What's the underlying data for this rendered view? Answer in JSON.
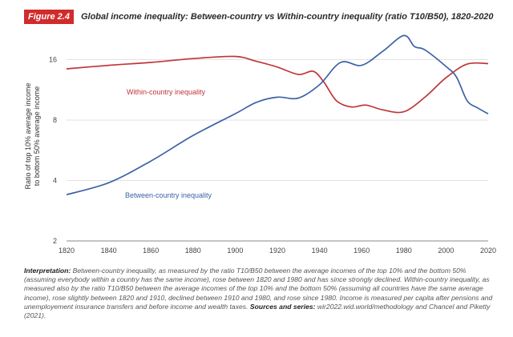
{
  "figure": {
    "label": "Figure 2.4",
    "title": "Global income inequality: Between-country vs Within-country inequality (ratio T10/B50), 1820-2020"
  },
  "chart_data": {
    "type": "line",
    "scale": "log",
    "ylabel": "Ratio of top 10% average income to bottom 50% average income",
    "xlim": [
      1820,
      2020
    ],
    "ylim": [
      2,
      23
    ],
    "x_ticks": [
      1820,
      1840,
      1860,
      1880,
      1900,
      1920,
      1940,
      1960,
      1980,
      2000,
      2020
    ],
    "y_ticks": [
      2,
      4,
      8,
      16
    ],
    "grid": "horizontal",
    "series": [
      {
        "name": "Within-country inequality",
        "color": "#c0353a",
        "points": [
          [
            1820,
            14.4
          ],
          [
            1840,
            15.0
          ],
          [
            1860,
            15.5
          ],
          [
            1880,
            16.2
          ],
          [
            1900,
            16.6
          ],
          [
            1910,
            15.7
          ],
          [
            1920,
            14.7
          ],
          [
            1930,
            13.5
          ],
          [
            1937,
            14.0
          ],
          [
            1942,
            12.4
          ],
          [
            1948,
            10.0
          ],
          [
            1955,
            9.3
          ],
          [
            1962,
            9.5
          ],
          [
            1970,
            9.0
          ],
          [
            1980,
            8.8
          ],
          [
            1990,
            10.4
          ],
          [
            2000,
            13.0
          ],
          [
            2010,
            15.2
          ],
          [
            2020,
            15.3
          ]
        ]
      },
      {
        "name": "Between-country inequality",
        "color": "#3d62a6",
        "points": [
          [
            1820,
            3.4
          ],
          [
            1840,
            3.9
          ],
          [
            1860,
            5.0
          ],
          [
            1880,
            6.7
          ],
          [
            1900,
            8.6
          ],
          [
            1910,
            9.8
          ],
          [
            1920,
            10.4
          ],
          [
            1930,
            10.3
          ],
          [
            1940,
            12.0
          ],
          [
            1950,
            15.5
          ],
          [
            1960,
            15.0
          ],
          [
            1970,
            17.6
          ],
          [
            1980,
            21.1
          ],
          [
            1985,
            18.6
          ],
          [
            1990,
            17.9
          ],
          [
            2000,
            14.8
          ],
          [
            2005,
            13.1
          ],
          [
            2010,
            10.0
          ],
          [
            2015,
            9.2
          ],
          [
            2020,
            8.6
          ]
        ]
      }
    ]
  },
  "note": {
    "interpretation_label": "Interpretation:",
    "interpretation_text": " Between-country inequality, as measured by the ratio T10/B50 between the average incomes of the top 10% and the bottom 50% (assuming everybody within a country has the same income), rose between 1820 and 1980 and has since strongly declined. Within-country inequality, as measured also by the ratio T10/B50 between the average incomes of the top 10% and the bottom 50% (assuming all countries have the same average income), rose slightly between 1820 and 1910, declined between 1910 and 1980, and rose since 1980. Income is measured per capita after pensions and unemployement insurance transfers and before income and wealth taxes. ",
    "sources_label": "Sources and series:",
    "sources_text": " wir2022.wid.world/methodology and Chancel and Piketty (2021)."
  }
}
